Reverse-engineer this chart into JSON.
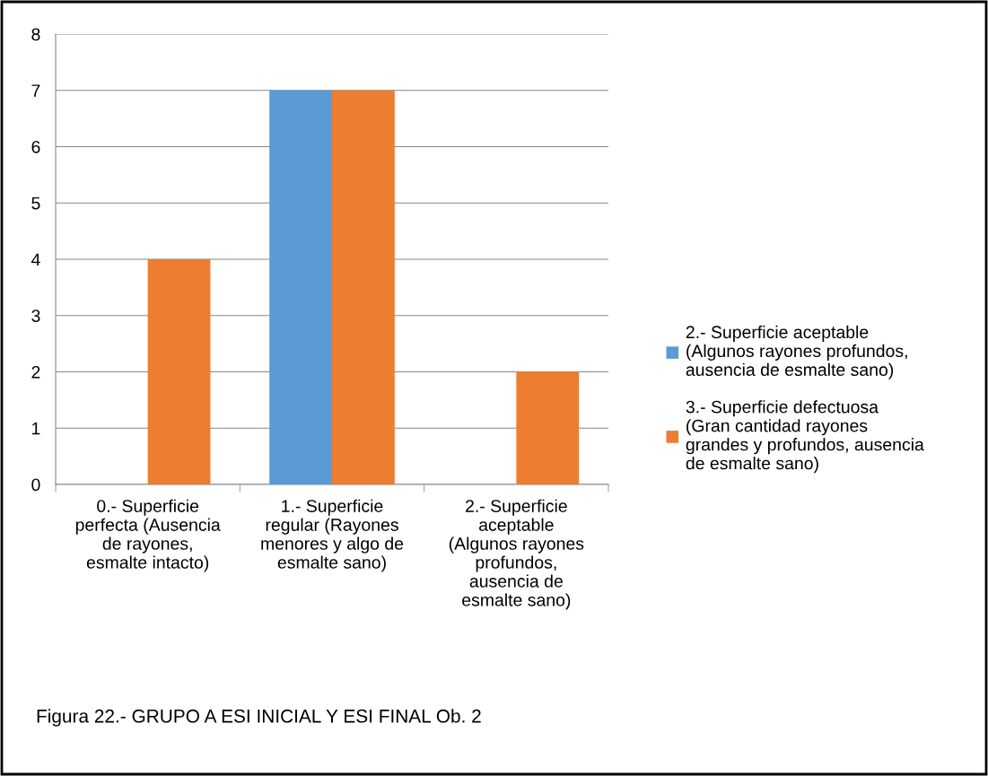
{
  "chart_data": {
    "type": "bar",
    "categories": [
      "0.- Superficie\nperfecta (Ausencia\nde rayones,\nesmalte intacto)",
      "1.- Superficie\nregular (Rayones\nmenores y algo de\nesmalte sano)",
      "2.- Superficie\naceptable\n(Algunos rayones\nprofundos,\nausencia de\nesmalte sano)"
    ],
    "series": [
      {
        "name": "2.- Superficie aceptable\n(Algunos rayones profundos,\nausencia de esmalte sano)",
        "color": "#5b9bd5",
        "values": [
          0,
          7,
          0
        ]
      },
      {
        "name": "3.- Superficie defectuosa\n(Gran cantidad rayones\ngrandes y profundos, ausencia\nde esmalte sano)",
        "color": "#ed7d31",
        "values": [
          4,
          7,
          2
        ]
      }
    ],
    "ylim": [
      0,
      8
    ],
    "yticks": [
      0,
      1,
      2,
      3,
      4,
      5,
      6,
      7,
      8
    ],
    "grid": "y",
    "legend": "right",
    "annotations": [
      "Figura 22.- GRUPO A ESI INICIAL Y ESI FINAL Ob. 2"
    ]
  }
}
